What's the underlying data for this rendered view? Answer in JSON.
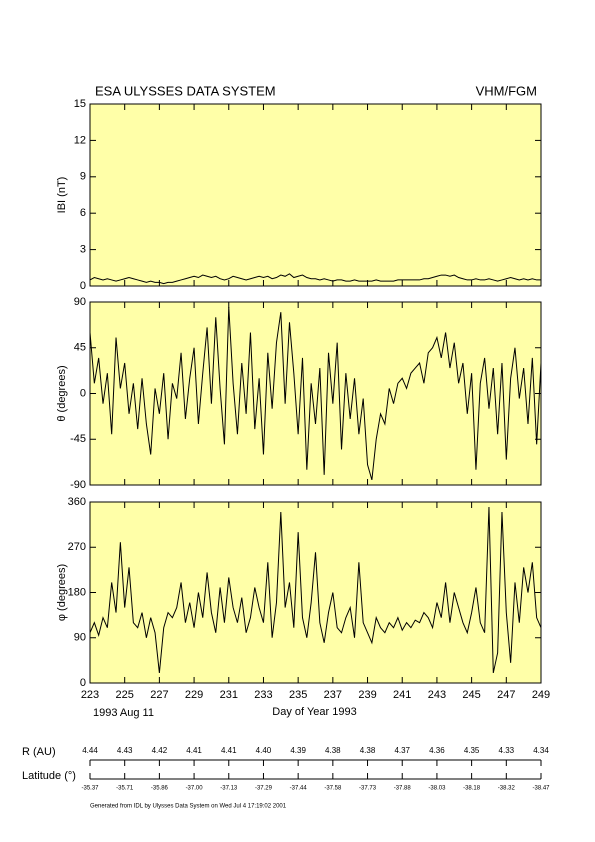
{
  "header": {
    "title": "ESA ULYSSES DATA SYSTEM",
    "instrument": "VHM/FGM"
  },
  "chart_data": [
    {
      "type": "line",
      "ylabel": "IBI (nT)",
      "color": "#000000",
      "background": "#ffffa8",
      "xlim": [
        223,
        249
      ],
      "xticks": [
        223,
        225,
        227,
        229,
        231,
        233,
        235,
        237,
        239,
        241,
        243,
        245,
        247,
        249
      ],
      "ylim": [
        0,
        15
      ],
      "yticks": [
        0,
        3,
        6,
        9,
        12,
        15
      ],
      "x": [
        223,
        223.25,
        223.5,
        223.75,
        224,
        224.25,
        224.5,
        224.75,
        225,
        225.25,
        225.5,
        225.75,
        226,
        226.25,
        226.5,
        226.75,
        227,
        227.25,
        227.5,
        227.75,
        228,
        228.25,
        228.5,
        228.75,
        229,
        229.25,
        229.5,
        229.75,
        230,
        230.25,
        230.5,
        230.75,
        231,
        231.25,
        231.5,
        231.75,
        232,
        232.25,
        232.5,
        232.75,
        233,
        233.25,
        233.5,
        233.75,
        234,
        234.25,
        234.5,
        234.75,
        235,
        235.25,
        235.5,
        235.75,
        236,
        236.25,
        236.5,
        236.75,
        237,
        237.25,
        237.5,
        237.75,
        238,
        238.25,
        238.5,
        238.75,
        239,
        239.25,
        239.5,
        239.75,
        240,
        240.25,
        240.5,
        240.75,
        241,
        241.25,
        241.5,
        241.75,
        242,
        242.25,
        242.5,
        242.75,
        243,
        243.25,
        243.5,
        243.75,
        244,
        244.25,
        244.5,
        244.75,
        245,
        245.25,
        245.5,
        245.75,
        246,
        246.25,
        246.5,
        246.75,
        247,
        247.25,
        247.5,
        247.75,
        248,
        248.25,
        248.5,
        248.75,
        249
      ],
      "values": [
        0.5,
        0.7,
        0.6,
        0.5,
        0.6,
        0.5,
        0.4,
        0.5,
        0.6,
        0.7,
        0.6,
        0.5,
        0.4,
        0.3,
        0.4,
        0.3,
        0.3,
        0.2,
        0.3,
        0.3,
        0.4,
        0.5,
        0.6,
        0.7,
        0.8,
        0.7,
        0.9,
        0.8,
        0.7,
        0.8,
        0.6,
        0.5,
        0.6,
        0.8,
        0.7,
        0.6,
        0.5,
        0.6,
        0.7,
        0.8,
        0.7,
        0.8,
        0.6,
        0.7,
        0.9,
        0.8,
        1.0,
        0.7,
        0.8,
        0.9,
        0.7,
        0.6,
        0.6,
        0.5,
        0.6,
        0.5,
        0.4,
        0.5,
        0.5,
        0.4,
        0.4,
        0.5,
        0.4,
        0.4,
        0.4,
        0.4,
        0.5,
        0.4,
        0.4,
        0.4,
        0.4,
        0.5,
        0.5,
        0.5,
        0.5,
        0.5,
        0.5,
        0.6,
        0.6,
        0.7,
        0.8,
        0.9,
        0.9,
        0.8,
        0.9,
        0.7,
        0.6,
        0.5,
        0.5,
        0.6,
        0.5,
        0.5,
        0.6,
        0.5,
        0.4,
        0.5,
        0.6,
        0.7,
        0.6,
        0.5,
        0.6,
        0.5,
        0.6,
        0.5,
        0.5
      ]
    },
    {
      "type": "line",
      "ylabel": "θ (degrees)",
      "color": "#000000",
      "background": "#ffffa8",
      "xlim": [
        223,
        249
      ],
      "xticks": [
        223,
        225,
        227,
        229,
        231,
        233,
        235,
        237,
        239,
        241,
        243,
        245,
        247,
        249
      ],
      "ylim": [
        -90,
        90
      ],
      "yticks": [
        -90,
        -45,
        0,
        45,
        90
      ],
      "x": [
        223,
        223.25,
        223.5,
        223.75,
        224,
        224.25,
        224.5,
        224.75,
        225,
        225.25,
        225.5,
        225.75,
        226,
        226.25,
        226.5,
        226.75,
        227,
        227.25,
        227.5,
        227.75,
        228,
        228.25,
        228.5,
        228.75,
        229,
        229.25,
        229.5,
        229.75,
        230,
        230.25,
        230.5,
        230.75,
        231,
        231.25,
        231.5,
        231.75,
        232,
        232.25,
        232.5,
        232.75,
        233,
        233.25,
        233.5,
        233.75,
        234,
        234.25,
        234.5,
        234.75,
        235,
        235.25,
        235.5,
        235.75,
        236,
        236.25,
        236.5,
        236.75,
        237,
        237.25,
        237.5,
        237.75,
        238,
        238.25,
        238.5,
        238.75,
        239,
        239.25,
        239.5,
        239.75,
        240,
        240.25,
        240.5,
        240.75,
        241,
        241.25,
        241.5,
        241.75,
        242,
        242.25,
        242.5,
        242.75,
        243,
        243.25,
        243.5,
        243.75,
        244,
        244.25,
        244.5,
        244.75,
        245,
        245.25,
        245.5,
        245.75,
        246,
        246.25,
        246.5,
        246.75,
        247,
        247.25,
        247.5,
        247.75,
        248,
        248.25,
        248.5,
        248.75,
        249
      ],
      "values": [
        60,
        10,
        35,
        -10,
        20,
        -40,
        55,
        5,
        30,
        -20,
        10,
        -35,
        15,
        -30,
        -60,
        5,
        -20,
        20,
        -45,
        10,
        -5,
        40,
        -25,
        15,
        45,
        -30,
        20,
        65,
        -10,
        75,
        5,
        -50,
        85,
        10,
        -40,
        30,
        -20,
        60,
        -35,
        15,
        -60,
        40,
        -15,
        50,
        80,
        -10,
        70,
        20,
        -40,
        35,
        -75,
        10,
        -30,
        25,
        -80,
        40,
        -10,
        50,
        -55,
        20,
        -25,
        15,
        -40,
        -5,
        -70,
        -85,
        -45,
        -20,
        -30,
        5,
        -10,
        10,
        15,
        5,
        20,
        25,
        30,
        10,
        40,
        45,
        55,
        35,
        60,
        25,
        50,
        10,
        30,
        -20,
        20,
        -75,
        10,
        35,
        -15,
        25,
        -40,
        30,
        -65,
        15,
        45,
        -5,
        25,
        -30,
        35,
        -50,
        30
      ]
    },
    {
      "type": "line",
      "ylabel": "φ (degrees)",
      "xlabel": "Day of Year 1993",
      "start_date": "1993 Aug 11",
      "color": "#000000",
      "background": "#ffffa8",
      "xlim": [
        223,
        249
      ],
      "xticks": [
        223,
        225,
        227,
        229,
        231,
        233,
        235,
        237,
        239,
        241,
        243,
        245,
        247,
        249
      ],
      "ylim": [
        0,
        360
      ],
      "yticks": [
        0,
        90,
        180,
        270,
        360
      ],
      "x": [
        223,
        223.25,
        223.5,
        223.75,
        224,
        224.25,
        224.5,
        224.75,
        225,
        225.25,
        225.5,
        225.75,
        226,
        226.25,
        226.5,
        226.75,
        227,
        227.25,
        227.5,
        227.75,
        228,
        228.25,
        228.5,
        228.75,
        229,
        229.25,
        229.5,
        229.75,
        230,
        230.25,
        230.5,
        230.75,
        231,
        231.25,
        231.5,
        231.75,
        232,
        232.25,
        232.5,
        232.75,
        233,
        233.25,
        233.5,
        233.75,
        234,
        234.25,
        234.5,
        234.75,
        235,
        235.25,
        235.5,
        235.75,
        236,
        236.25,
        236.5,
        236.75,
        237,
        237.25,
        237.5,
        237.75,
        238,
        238.25,
        238.5,
        238.75,
        239,
        239.25,
        239.5,
        239.75,
        240,
        240.25,
        240.5,
        240.75,
        241,
        241.25,
        241.5,
        241.75,
        242,
        242.25,
        242.5,
        242.75,
        243,
        243.25,
        243.5,
        243.75,
        244,
        244.25,
        244.5,
        244.75,
        245,
        245.25,
        245.5,
        245.75,
        246,
        246.25,
        246.5,
        246.75,
        247,
        247.25,
        247.5,
        247.75,
        248,
        248.25,
        248.5,
        248.75,
        249
      ],
      "values": [
        100,
        120,
        95,
        130,
        110,
        200,
        140,
        280,
        150,
        230,
        120,
        110,
        140,
        90,
        130,
        100,
        20,
        110,
        140,
        130,
        150,
        200,
        120,
        160,
        110,
        180,
        130,
        220,
        140,
        100,
        190,
        120,
        210,
        150,
        120,
        170,
        100,
        130,
        190,
        150,
        120,
        240,
        90,
        160,
        340,
        150,
        200,
        110,
        300,
        130,
        90,
        160,
        260,
        120,
        80,
        140,
        180,
        110,
        100,
        130,
        150,
        90,
        240,
        120,
        100,
        80,
        130,
        110,
        100,
        120,
        110,
        130,
        105,
        120,
        110,
        125,
        120,
        140,
        130,
        110,
        160,
        130,
        200,
        120,
        180,
        150,
        120,
        100,
        140,
        190,
        120,
        100,
        350,
        20,
        60,
        340,
        140,
        40,
        200,
        120,
        230,
        180,
        240,
        130,
        110
      ]
    }
  ],
  "orbit": {
    "r_label": "R (AU)",
    "r_values": [
      "4.44",
      "4.43",
      "4.42",
      "4.41",
      "4.41",
      "4.40",
      "4.39",
      "4.38",
      "4.38",
      "4.37",
      "4.36",
      "4.35",
      "4.33",
      "4.34"
    ],
    "lat_label": "Latitude (°)",
    "lat_values": [
      "-35.37",
      "-35.71",
      "-35.86",
      "-37.00",
      "-37.13",
      "-37.29",
      "-37.44",
      "-37.58",
      "-37.73",
      "-37.88",
      "-38.03",
      "-38.18",
      "-38.32",
      "-38.47"
    ]
  },
  "footer": "Generated from IDL by Ulysses Data System on Wed Jul  4 17:19:02 2001"
}
